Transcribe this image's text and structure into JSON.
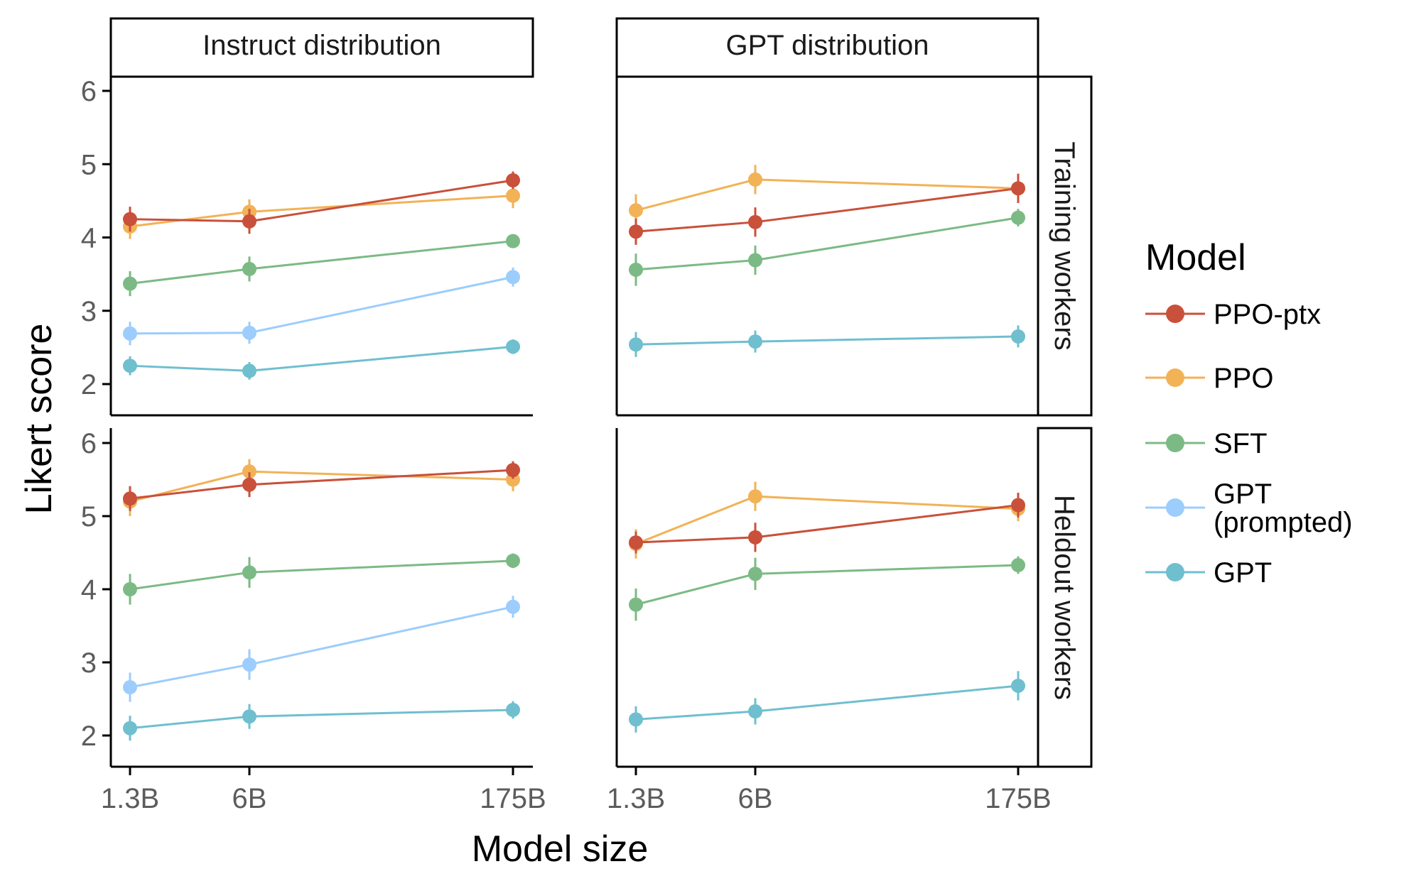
{
  "chart_data": {
    "type": "line",
    "xlabel": "Model size",
    "ylabel": "Likert score",
    "categories": [
      "1.3B",
      "6B",
      "175B"
    ],
    "y_ticks": [
      2,
      3,
      4,
      5,
      6
    ],
    "ylim": [
      1.6,
      6.2
    ],
    "grid": false,
    "legend": {
      "title": "Model",
      "placement": "right"
    },
    "column_facets": [
      "Instruct distribution",
      "GPT distribution"
    ],
    "row_facets": [
      "Training workers",
      "Heldout workers"
    ],
    "series_styles": [
      {
        "name": "PPO-ptx",
        "color": "#c9503a"
      },
      {
        "name": "PPO",
        "color": "#f2b256"
      },
      {
        "name": "SFT",
        "color": "#7cba85"
      },
      {
        "name": "GPT (prompted)",
        "label_lines": [
          "GPT",
          "(prompted)"
        ],
        "color": "#9ccdfc"
      },
      {
        "name": "GPT",
        "color": "#6fbfcf"
      }
    ],
    "panels": [
      {
        "column": "Instruct distribution",
        "row": "Training workers",
        "series": [
          {
            "name": "PPO-ptx",
            "values": [
              4.25,
              4.22,
              4.78
            ],
            "err": [
              0.17,
              0.17,
              0.12
            ]
          },
          {
            "name": "PPO",
            "values": [
              4.15,
              4.35,
              4.57
            ],
            "err": [
              0.17,
              0.17,
              0.17
            ]
          },
          {
            "name": "SFT",
            "values": [
              3.37,
              3.57,
              3.95
            ],
            "err": [
              0.17,
              0.17,
              0.08
            ]
          },
          {
            "name": "GPT (prompted)",
            "values": [
              2.69,
              2.7,
              3.46
            ],
            "err": [
              0.16,
              0.15,
              0.13
            ]
          },
          {
            "name": "GPT",
            "values": [
              2.25,
              2.18,
              2.51
            ],
            "err": [
              0.13,
              0.12,
              0.1
            ]
          }
        ]
      },
      {
        "column": "GPT distribution",
        "row": "Training workers",
        "series": [
          {
            "name": "PPO-ptx",
            "values": [
              4.08,
              4.21,
              4.67
            ],
            "err": [
              0.18,
              0.2,
              0.2
            ]
          },
          {
            "name": "PPO",
            "values": [
              4.37,
              4.79,
              4.67
            ],
            "err": [
              0.22,
              0.2,
              0.2
            ]
          },
          {
            "name": "SFT",
            "values": [
              3.56,
              3.69,
              4.27
            ],
            "err": [
              0.22,
              0.2,
              0.12
            ]
          },
          {
            "name": "GPT",
            "values": [
              2.54,
              2.58,
              2.65
            ],
            "err": [
              0.17,
              0.15,
              0.15
            ]
          }
        ]
      },
      {
        "column": "Instruct distribution",
        "row": "Heldout workers",
        "series": [
          {
            "name": "PPO-ptx",
            "values": [
              5.24,
              5.43,
              5.63
            ],
            "err": [
              0.17,
              0.17,
              0.12
            ]
          },
          {
            "name": "PPO",
            "values": [
              5.2,
              5.61,
              5.5
            ],
            "err": [
              0.2,
              0.17,
              0.16
            ]
          },
          {
            "name": "SFT",
            "values": [
              4.0,
              4.23,
              4.39
            ],
            "err": [
              0.21,
              0.21,
              0.1
            ]
          },
          {
            "name": "GPT (prompted)",
            "values": [
              2.66,
              2.97,
              3.76
            ],
            "err": [
              0.2,
              0.21,
              0.15
            ]
          },
          {
            "name": "GPT",
            "values": [
              2.1,
              2.26,
              2.35
            ],
            "err": [
              0.17,
              0.17,
              0.12
            ]
          }
        ]
      },
      {
        "column": "GPT distribution",
        "row": "Heldout workers",
        "series": [
          {
            "name": "PPO-ptx",
            "values": [
              4.64,
              4.71,
              5.15
            ],
            "err": [
              0.15,
              0.2,
              0.17
            ]
          },
          {
            "name": "PPO",
            "values": [
              4.62,
              5.27,
              5.1
            ],
            "err": [
              0.2,
              0.2,
              0.17
            ]
          },
          {
            "name": "SFT",
            "values": [
              3.79,
              4.21,
              4.33
            ],
            "err": [
              0.22,
              0.22,
              0.12
            ]
          },
          {
            "name": "GPT",
            "values": [
              2.22,
              2.33,
              2.68
            ],
            "err": [
              0.18,
              0.18,
              0.2
            ]
          }
        ]
      }
    ]
  }
}
